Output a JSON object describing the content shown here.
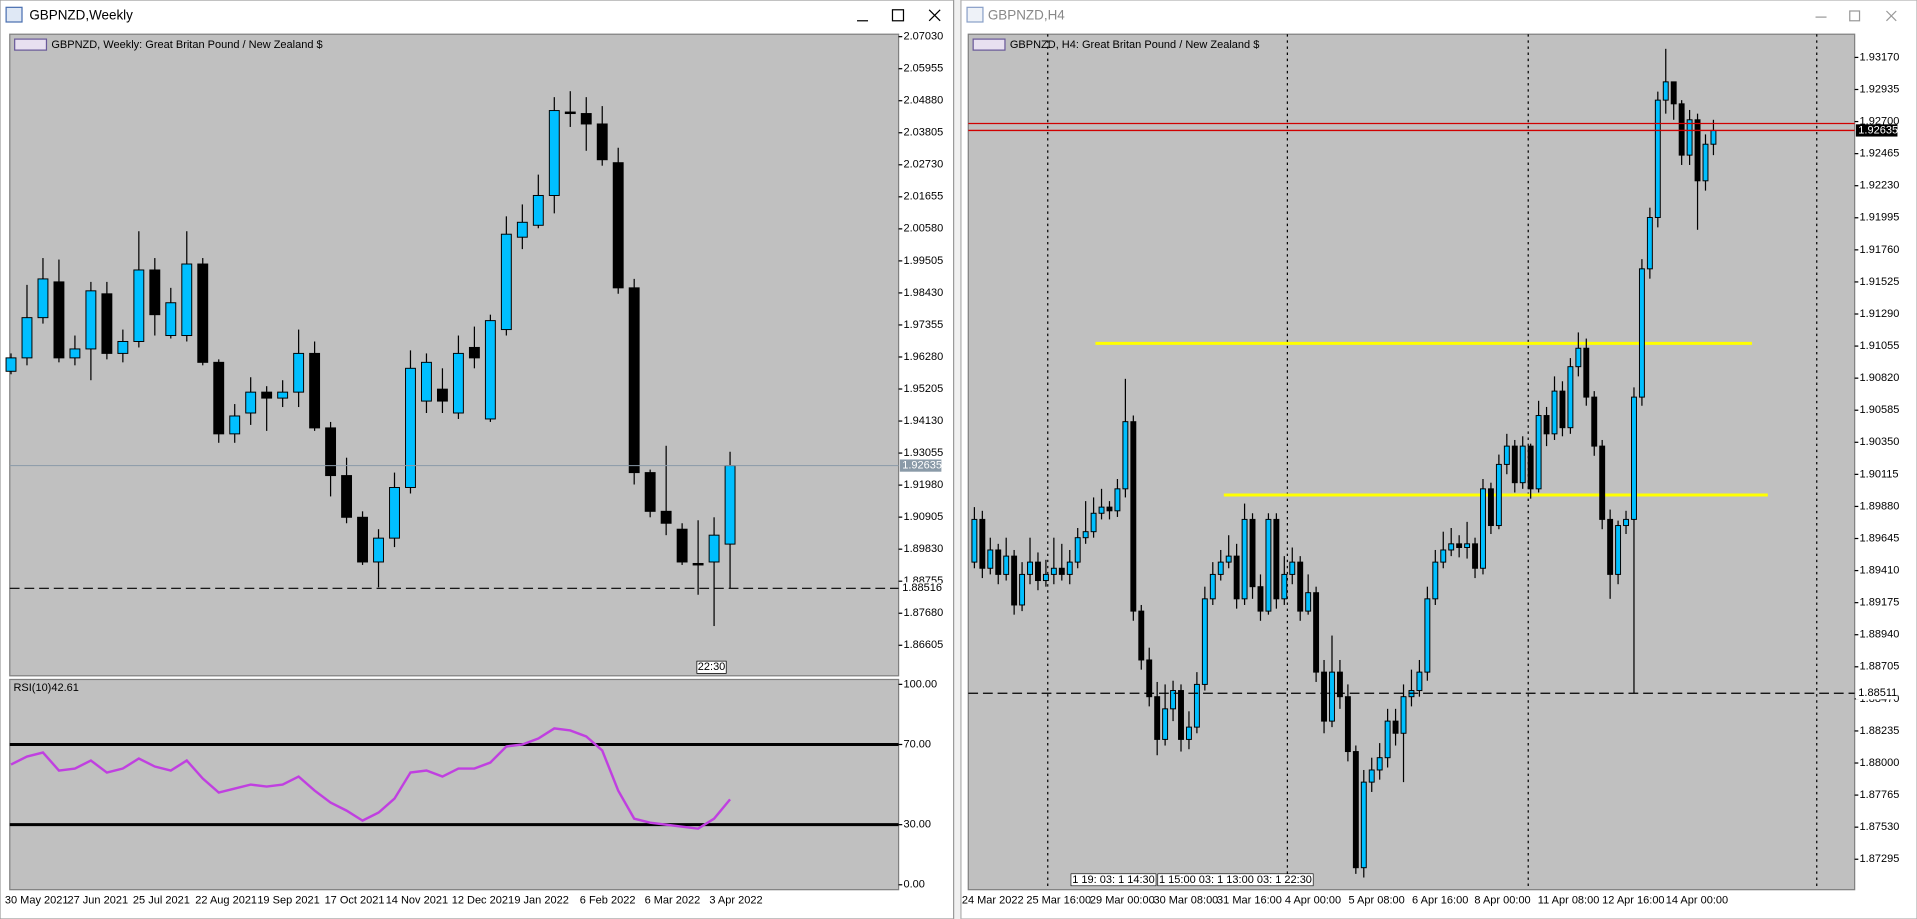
{
  "windows": [
    "GBPNZD,Weekly",
    "GBPNZD,H4"
  ],
  "chart_data": [
    {
      "type": "candlestick",
      "title": "GBPNZD, Weekly:  Great Britan Pound / New Zealand $",
      "up_color": "#00bfff",
      "down_color": "#000000",
      "bid": 1.92635,
      "bid_color": "#8a9aa8",
      "level": 1.88516,
      "timer": "22:30",
      "x_labels": [
        "30 May 2021",
        "27 Jun 2021",
        "25 Jul 2021",
        "22 Aug 2021",
        "19 Sep 2021",
        "17 Oct 2021",
        "14 Nov 2021",
        "12 Dec 2021",
        "9 Jan 2022",
        "6 Feb 2022",
        "6 Mar 2022",
        "3 Apr 2022"
      ],
      "ylim": [
        1.8558,
        2.07112
      ],
      "yticks": [
        {
          "value": 2.0703,
          "label": "2.07030"
        },
        {
          "value": 2.05955,
          "label": "2.05955"
        },
        {
          "value": 2.0488,
          "label": "2.04880"
        },
        {
          "value": 2.03805,
          "label": "2.03805"
        },
        {
          "value": 2.0273,
          "label": "2.02730"
        },
        {
          "value": 2.01655,
          "label": "2.01655"
        },
        {
          "value": 2.0058,
          "label": "2.00580"
        },
        {
          "value": 1.99505,
          "label": "1.99505"
        },
        {
          "value": 1.9843,
          "label": "1.98430"
        },
        {
          "value": 1.97355,
          "label": "1.97355"
        },
        {
          "value": 1.9628,
          "label": "1.96280"
        },
        {
          "value": 1.95205,
          "label": "1.95205"
        },
        {
          "value": 1.9413,
          "label": "1.94130"
        },
        {
          "value": 1.93055,
          "label": "1.93055"
        },
        {
          "value": 1.9198,
          "label": "1.91980"
        },
        {
          "value": 1.90905,
          "label": "1.90905"
        },
        {
          "value": 1.8983,
          "label": "1.89830"
        },
        {
          "value": 1.88755,
          "label": "1.88755"
        },
        {
          "value": 1.8768,
          "label": "1.87680"
        },
        {
          "value": 1.86605,
          "label": "1.86605"
        }
      ],
      "ohlc": [
        [
          1.958,
          1.964,
          1.957,
          1.9625
        ],
        [
          1.9625,
          1.987,
          1.96,
          1.976
        ],
        [
          1.976,
          1.996,
          1.974,
          1.989
        ],
        [
          1.988,
          1.9955,
          1.961,
          1.9625
        ],
        [
          1.9625,
          1.97,
          1.96,
          1.9655
        ],
        [
          1.9655,
          1.988,
          1.955,
          1.985
        ],
        [
          1.984,
          1.988,
          1.962,
          1.964
        ],
        [
          1.964,
          1.972,
          1.961,
          1.968
        ],
        [
          1.968,
          2.005,
          1.966,
          1.992
        ],
        [
          1.992,
          1.996,
          1.97,
          1.977
        ],
        [
          1.97,
          1.986,
          1.969,
          1.981
        ],
        [
          1.97,
          2.005,
          1.968,
          1.994
        ],
        [
          1.994,
          1.996,
          1.96,
          1.961
        ],
        [
          1.961,
          1.962,
          1.934,
          1.937
        ],
        [
          1.937,
          1.947,
          1.934,
          1.943
        ],
        [
          1.944,
          1.956,
          1.94,
          1.951
        ],
        [
          1.951,
          1.953,
          1.938,
          1.949
        ],
        [
          1.949,
          1.955,
          1.946,
          1.951
        ],
        [
          1.951,
          1.972,
          1.946,
          1.964
        ],
        [
          1.964,
          1.968,
          1.938,
          1.939
        ],
        [
          1.939,
          1.941,
          1.916,
          1.923
        ],
        [
          1.923,
          1.929,
          1.907,
          1.909
        ],
        [
          1.909,
          1.911,
          1.893,
          1.894
        ],
        [
          1.894,
          1.905,
          1.8855,
          1.902
        ],
        [
          1.902,
          1.924,
          1.899,
          1.919
        ],
        [
          1.919,
          1.965,
          1.917,
          1.959
        ],
        [
          1.948,
          1.964,
          1.944,
          1.961
        ],
        [
          1.952,
          1.959,
          1.944,
          1.948
        ],
        [
          1.944,
          1.97,
          1.942,
          1.964
        ],
        [
          1.966,
          1.973,
          1.959,
          1.9625
        ],
        [
          1.942,
          1.977,
          1.941,
          1.975
        ],
        [
          1.972,
          2.01,
          1.97,
          2.004
        ],
        [
          2.003,
          2.014,
          1.999,
          2.008
        ],
        [
          2.007,
          2.024,
          2.006,
          2.017
        ],
        [
          2.017,
          2.05,
          2.011,
          2.0455
        ],
        [
          2.045,
          2.052,
          2.04,
          2.0445
        ],
        [
          2.0445,
          2.05,
          2.032,
          2.041
        ],
        [
          2.041,
          2.047,
          2.027,
          2.029
        ],
        [
          2.028,
          2.033,
          1.984,
          1.986
        ],
        [
          1.986,
          1.989,
          1.92,
          1.924
        ],
        [
          1.924,
          1.925,
          1.909,
          1.911
        ],
        [
          1.911,
          1.933,
          1.903,
          1.907
        ],
        [
          1.905,
          1.907,
          1.893,
          1.894
        ],
        [
          1.8935,
          1.908,
          1.883,
          1.893
        ],
        [
          1.894,
          1.909,
          1.8725,
          1.903
        ],
        [
          1.9,
          1.931,
          1.8851,
          1.92635
        ]
      ]
    },
    {
      "type": "line",
      "title": "RSI(10)",
      "color": "#c040e0",
      "ylim": [
        0,
        100
      ],
      "yticks": [
        {
          "value": 100,
          "label": "100.00"
        },
        {
          "value": 70,
          "label": "70.00"
        },
        {
          "value": 30,
          "label": "30.00"
        },
        {
          "value": 0,
          "label": "0.00"
        }
      ],
      "values": [
        60,
        64,
        66,
        57,
        58,
        62,
        56,
        58,
        63,
        59,
        57,
        62,
        53,
        46,
        48,
        50,
        49,
        50,
        54,
        47,
        41,
        37,
        32,
        36,
        43,
        56,
        57,
        54,
        58,
        58,
        61,
        69,
        70,
        73,
        78,
        77,
        74,
        67,
        47,
        33,
        31,
        30,
        29,
        28,
        33,
        42.61
      ]
    },
    {
      "type": "candlestick",
      "title": "GBPNZD, H4:  Great Britan Pound / New Zealand $",
      "up_color": "#00bfff",
      "down_color": "#000000",
      "bid": 1.92635,
      "ask": 1.92686,
      "bid_color": "#d00000",
      "level": 1.88511,
      "hlines": [
        {
          "value": 1.91075,
          "color": "#ffff00"
        },
        {
          "value": 1.89964,
          "color": "#ffff00"
        }
      ],
      "tags": [
        "1 19: 03: 1 14:30",
        "1 15:00 03: 1 13:00 03: 1 22:30"
      ],
      "x_labels": [
        "24 Mar 2022",
        "25 Mar 16:00",
        "29 Mar 00:00",
        "30 Mar 08:00",
        "31 Mar 16:00",
        "4 Apr 00:00",
        "5 Apr 08:00",
        "6 Apr 16:00",
        "8 Apr 00:00",
        "11 Apr 08:00",
        "12 Apr 16:00",
        "14 Apr 00:00"
      ],
      "ylim": [
        1.87072,
        1.9334
      ],
      "yticks": [
        {
          "value": 1.9317,
          "label": "1.93170"
        },
        {
          "value": 1.92935,
          "label": "1.92935"
        },
        {
          "value": 1.927,
          "label": "1.92700"
        },
        {
          "value": 1.92465,
          "label": "1.92465"
        },
        {
          "value": 1.9223,
          "label": "1.92230"
        },
        {
          "value": 1.91995,
          "label": "1.91995"
        },
        {
          "value": 1.9176,
          "label": "1.91760"
        },
        {
          "value": 1.91525,
          "label": "1.91525"
        },
        {
          "value": 1.9129,
          "label": "1.91290"
        },
        {
          "value": 1.91055,
          "label": "1.91055"
        },
        {
          "value": 1.9082,
          "label": "1.90820"
        },
        {
          "value": 1.90585,
          "label": "1.90585"
        },
        {
          "value": 1.9035,
          "label": "1.90350"
        },
        {
          "value": 1.90115,
          "label": "1.90115"
        },
        {
          "value": 1.8988,
          "label": "1.89880"
        },
        {
          "value": 1.89645,
          "label": "1.89645"
        },
        {
          "value": 1.8941,
          "label": "1.89410"
        },
        {
          "value": 1.89175,
          "label": "1.89175"
        },
        {
          "value": 1.8894,
          "label": "1.88940"
        },
        {
          "value": 1.88705,
          "label": "1.88705"
        },
        {
          "value": 1.8847,
          "label": "1.88470"
        },
        {
          "value": 1.88235,
          "label": "1.88235"
        },
        {
          "value": 1.88,
          "label": "1.88000"
        },
        {
          "value": 1.87765,
          "label": "1.87765"
        },
        {
          "value": 1.8753,
          "label": "1.87530"
        },
        {
          "value": 1.87295,
          "label": "1.87295"
        }
      ],
      "ohlc": [
        [
          1.89472,
          1.89875,
          1.89427,
          1.89785
        ],
        [
          1.89785,
          1.89848,
          1.89355,
          1.89427
        ],
        [
          1.89427,
          1.89651,
          1.89382,
          1.89561
        ],
        [
          1.89561,
          1.89606,
          1.8931,
          1.89382
        ],
        [
          1.89382,
          1.89651,
          1.89337,
          1.89516
        ],
        [
          1.89516,
          1.89561,
          1.89087,
          1.89158
        ],
        [
          1.89158,
          1.89472,
          1.89113,
          1.89382
        ],
        [
          1.89382,
          1.89651,
          1.8931,
          1.89472
        ],
        [
          1.89472,
          1.89543,
          1.89266,
          1.89337
        ],
        [
          1.89337,
          1.89489,
          1.89292,
          1.89382
        ],
        [
          1.89382,
          1.89651,
          1.8931,
          1.89427
        ],
        [
          1.89427,
          1.89606,
          1.89337,
          1.89382
        ],
        [
          1.89382,
          1.89561,
          1.8931,
          1.89472
        ],
        [
          1.89472,
          1.89722,
          1.89427,
          1.89651
        ],
        [
          1.89651,
          1.89919,
          1.89606,
          1.89695
        ],
        [
          1.89695,
          1.89946,
          1.89651,
          1.8983
        ],
        [
          1.8983,
          1.90009,
          1.89785,
          1.89875
        ],
        [
          1.89875,
          1.89919,
          1.89785,
          1.89848
        ],
        [
          1.89848,
          1.90081,
          1.89803,
          1.90009
        ],
        [
          1.90009,
          1.90815,
          1.89946,
          1.90501
        ],
        [
          1.90501,
          1.90546,
          1.89042,
          1.89113
        ],
        [
          1.89113,
          1.89158,
          1.88684,
          1.88755
        ],
        [
          1.88755,
          1.88845,
          1.88415,
          1.88486
        ],
        [
          1.88486,
          1.88594,
          1.88057,
          1.88173
        ],
        [
          1.88173,
          1.88576,
          1.88128,
          1.88397
        ],
        [
          1.88397,
          1.88603,
          1.88307,
          1.88531
        ],
        [
          1.88531,
          1.88576,
          1.88084,
          1.88173
        ],
        [
          1.88173,
          1.88379,
          1.88101,
          1.88263
        ],
        [
          1.88263,
          1.88666,
          1.88218,
          1.88576
        ],
        [
          1.88576,
          1.89292,
          1.88531,
          1.89203
        ],
        [
          1.89203,
          1.89472,
          1.89158,
          1.89382
        ],
        [
          1.89382,
          1.89561,
          1.89337,
          1.89472
        ],
        [
          1.89472,
          1.89669,
          1.89427,
          1.89516
        ],
        [
          1.89516,
          1.89606,
          1.89131,
          1.89203
        ],
        [
          1.89203,
          1.89901,
          1.89158,
          1.89785
        ],
        [
          1.89785,
          1.8983,
          1.89203,
          1.89292
        ],
        [
          1.89292,
          1.89382,
          1.89042,
          1.89113
        ],
        [
          1.89113,
          1.8983,
          1.89087,
          1.89785
        ],
        [
          1.89785,
          1.8983,
          1.89131,
          1.89203
        ],
        [
          1.89203,
          1.89516,
          1.89158,
          1.89382
        ],
        [
          1.89382,
          1.89579,
          1.8931,
          1.89472
        ],
        [
          1.89472,
          1.89516,
          1.89042,
          1.89113
        ],
        [
          1.89113,
          1.89382,
          1.89087,
          1.89248
        ],
        [
          1.89248,
          1.89292,
          1.88594,
          1.88666
        ],
        [
          1.88666,
          1.88755,
          1.88218,
          1.88307
        ],
        [
          1.88307,
          1.88934,
          1.88263,
          1.88666
        ],
        [
          1.88666,
          1.88755,
          1.88397,
          1.88486
        ],
        [
          1.88486,
          1.88576,
          1.88012,
          1.88084
        ],
        [
          1.88084,
          1.88128,
          1.87188,
          1.87233
        ],
        [
          1.87233,
          1.87949,
          1.87161,
          1.8786
        ],
        [
          1.8786,
          1.88039,
          1.87788,
          1.87949
        ],
        [
          1.87949,
          1.88146,
          1.87878,
          1.88039
        ],
        [
          1.88039,
          1.88397,
          1.87967,
          1.88307
        ],
        [
          1.88307,
          1.88397,
          1.88128,
          1.88218
        ],
        [
          1.88218,
          1.88576,
          1.8786,
          1.88486
        ],
        [
          1.88486,
          1.88684,
          1.88415,
          1.88531
        ],
        [
          1.88531,
          1.88755,
          1.88486,
          1.88666
        ],
        [
          1.88666,
          1.89292,
          1.88603,
          1.89203
        ],
        [
          1.89203,
          1.89561,
          1.89158,
          1.89472
        ],
        [
          1.89472,
          1.89695,
          1.89427,
          1.89561
        ],
        [
          1.89561,
          1.89722,
          1.89516,
          1.89606
        ],
        [
          1.89606,
          1.89669,
          1.89507,
          1.89579
        ],
        [
          1.89579,
          1.89767,
          1.89498,
          1.89606
        ],
        [
          1.89606,
          1.89651,
          1.89355,
          1.89427
        ],
        [
          1.89427,
          1.90081,
          1.89382,
          1.90009
        ],
        [
          1.90009,
          1.90054,
          1.89678,
          1.8974
        ],
        [
          1.8974,
          1.9026,
          1.89713,
          1.90188
        ],
        [
          1.90188,
          1.90412,
          1.90116,
          1.90322
        ],
        [
          1.90322,
          1.90367,
          1.89982,
          1.90054
        ],
        [
          1.90054,
          1.90394,
          1.90009,
          1.90322
        ],
        [
          1.90322,
          1.9034,
          1.89937,
          1.90009
        ],
        [
          1.90009,
          1.90654,
          1.89982,
          1.90546
        ],
        [
          1.90546,
          1.90609,
          1.90322,
          1.90412
        ],
        [
          1.90412,
          1.90833,
          1.90367,
          1.90725
        ],
        [
          1.90725,
          1.90797,
          1.90394,
          1.90457
        ],
        [
          1.90457,
          1.90967,
          1.90412,
          1.90904
        ],
        [
          1.90904,
          1.91155,
          1.90833,
          1.91039
        ],
        [
          1.91039,
          1.9111,
          1.90618,
          1.90681
        ],
        [
          1.90681,
          1.90725,
          1.90251,
          1.90322
        ],
        [
          1.90322,
          1.90367,
          1.89713,
          1.89785
        ],
        [
          1.89785,
          1.89857,
          1.89203,
          1.89382
        ],
        [
          1.89382,
          1.89776,
          1.8931,
          1.8974
        ],
        [
          1.8974,
          1.89848,
          1.89678,
          1.89785
        ],
        [
          1.89785,
          1.90752,
          1.88511,
          1.90681
        ],
        [
          1.90681,
          1.91692,
          1.90618,
          1.91621
        ],
        [
          1.91621,
          1.92069,
          1.91549,
          1.91997
        ],
        [
          1.91997,
          1.92919,
          1.91925,
          1.92857
        ],
        [
          1.92857,
          1.93233,
          1.92758,
          1.92991
        ],
        [
          1.92991,
          1.92991,
          1.92713,
          1.9283
        ],
        [
          1.9283,
          1.92857,
          1.92382,
          1.92454
        ],
        [
          1.92454,
          1.92785,
          1.92382,
          1.92713
        ],
        [
          1.92713,
          1.92758,
          1.91907,
          1.92266
        ],
        [
          1.92266,
          1.92606,
          1.92194,
          1.92534
        ],
        [
          1.92534,
          1.92713,
          1.92454,
          1.92635
        ]
      ]
    }
  ]
}
